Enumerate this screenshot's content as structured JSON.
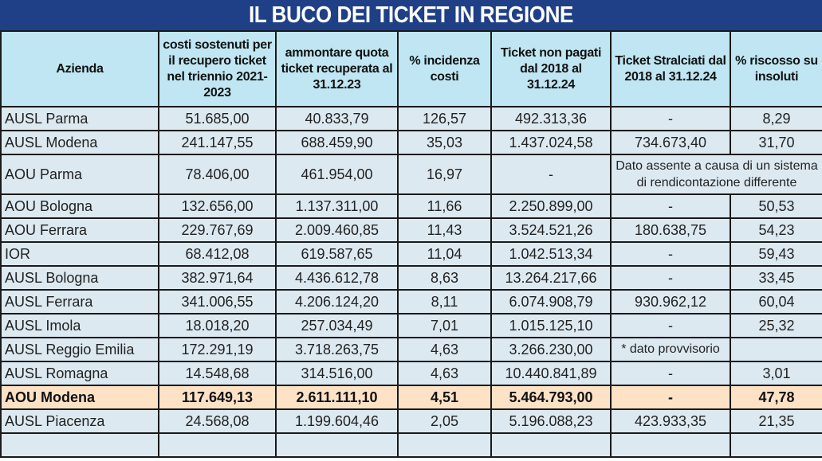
{
  "title": "IL BUCO DEI TICKET IN REGIONE",
  "colors": {
    "title_bg": "#1f3f86",
    "header_bg": "#bfe6f2",
    "row_bg": "#dde9f1",
    "highlight_bg": "#fde2c6"
  },
  "columns": [
    "Azienda",
    "costi sostenuti per il recupero ticket nel triennio 2021-2023",
    "ammontare quota ticket recuperata al 31.12.23",
    "% incidenza costi",
    "Ticket non pagati dal 2018 al 31.12.24",
    "Ticket Stralciati dal 2018 al 31.12.24",
    "% riscosso su insoluti"
  ],
  "rows": [
    {
      "cells": [
        "AUSL Parma",
        "51.685,00",
        "40.833,79",
        "126,57",
        "492.313,36",
        "-",
        "8,29"
      ]
    },
    {
      "cells": [
        "AUSL Modena",
        "241.147,55",
        "688.459,90",
        "35,03",
        "1.437.024,58",
        "734.673,40",
        "31,70"
      ]
    },
    {
      "cells": [
        "AOU Parma",
        "78.406,00",
        "461.954,00",
        "16,97",
        "-"
      ],
      "note": "Dato assente a causa di un sistema di rendicontazione differente"
    },
    {
      "cells": [
        "AOU Bologna",
        "132.656,00",
        "1.137.311,00",
        "11,66",
        "2.250.899,00",
        "-",
        "50,53"
      ]
    },
    {
      "cells": [
        "AOU Ferrara",
        "229.767,69",
        "2.009.460,85",
        "11,43",
        "3.524.521,26",
        "180.638,75",
        "54,23"
      ]
    },
    {
      "cells": [
        "IOR",
        "68.412,08",
        "619.587,65",
        "11,04",
        "1.042.513,34",
        "-",
        "59,43"
      ]
    },
    {
      "cells": [
        "AUSL Bologna",
        "382.971,64",
        "4.436.612,78",
        "8,63",
        "13.264.217,66",
        "-",
        "33,45"
      ]
    },
    {
      "cells": [
        "AUSL Ferrara",
        "341.006,55",
        "4.206.124,20",
        "8,11",
        "6.074.908,79",
        "930.962,12",
        "60,04"
      ]
    },
    {
      "cells": [
        "AUSL Imola",
        "18.018,20",
        "257.034,49",
        "7,01",
        "1.015.125,10",
        "-",
        "25,32"
      ]
    },
    {
      "cells": [
        "AUSL Reggio Emilia",
        "172.291,19",
        "3.718.263,75",
        "4,63",
        "3.266.230,00",
        "* dato provvisorio",
        ""
      ]
    },
    {
      "cells": [
        "AUSL Romagna",
        "14.548,68",
        "314.516,00",
        "4,63",
        "10.440.841,89",
        "-",
        "3,01"
      ]
    },
    {
      "cells": [
        "AOU Modena",
        "117.649,13",
        "2.611.111,10",
        "4,51",
        "5.464.793,00",
        "-",
        "47,78"
      ],
      "highlight": true
    },
    {
      "cells": [
        "AUSL Piacenza",
        "24.568,08",
        "1.199.604,46",
        "2,05",
        "5.196.088,23",
        "423.933,35",
        "21,35"
      ]
    },
    {
      "cells": [
        "",
        "",
        "",
        "",
        "",
        "",
        ""
      ]
    }
  ]
}
